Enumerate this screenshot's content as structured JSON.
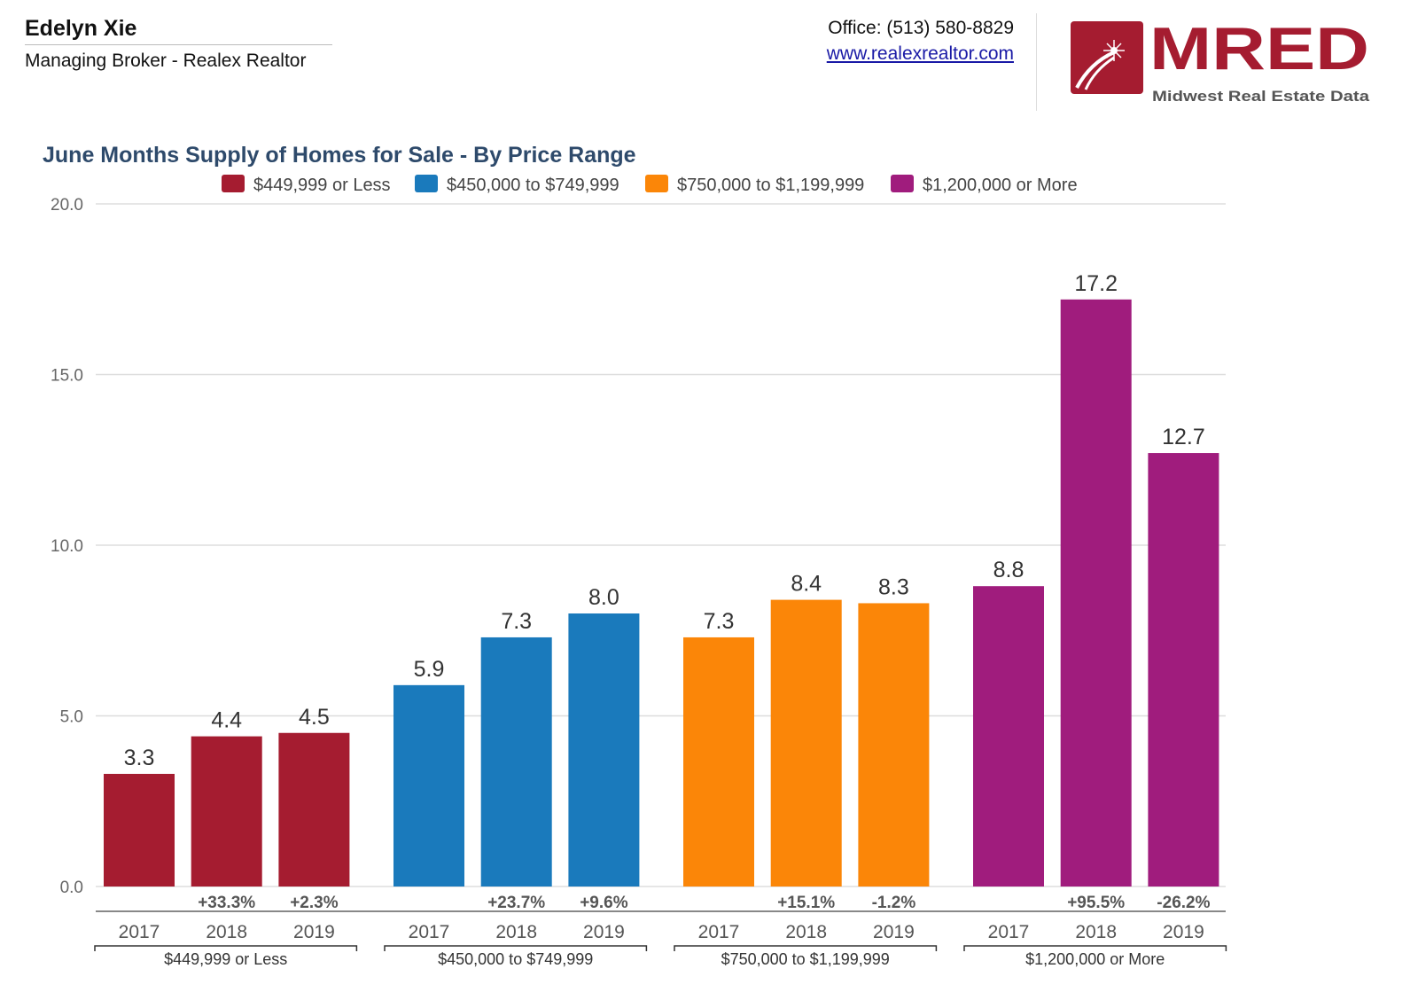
{
  "header": {
    "name": "Edelyn Xie",
    "role": "Managing Broker - Realex Realtor",
    "office": "Office: (513) 580-8829",
    "website": "www.realexrealtor.com",
    "logo": {
      "text": "MRED",
      "subtitle": "Midwest Real Estate Data",
      "color": "#a51c30"
    }
  },
  "chart_data": {
    "type": "bar",
    "title": "June Months Supply of Homes for Sale - By Price Range",
    "ylim": [
      0,
      20
    ],
    "yticks": [
      "0.0",
      "5.0",
      "10.0",
      "15.0",
      "20.0"
    ],
    "grid": true,
    "legend_placement": "top",
    "categories": [
      "2017",
      "2018",
      "2019"
    ],
    "series": [
      {
        "name": "$449,999 or Less",
        "color": "#a51c30",
        "values": [
          3.3,
          4.4,
          4.5
        ],
        "labels": [
          "3.3",
          "4.4",
          "4.5"
        ],
        "changes": [
          "",
          "+33.3%",
          "+2.3%"
        ]
      },
      {
        "name": "$450,000 to $749,999",
        "color": "#1a7abc",
        "values": [
          5.9,
          7.3,
          8.0
        ],
        "labels": [
          "5.9",
          "7.3",
          "8.0"
        ],
        "changes": [
          "",
          "+23.7%",
          "+9.6%"
        ]
      },
      {
        "name": "$750,000 to $1,199,999",
        "color": "#fb8608",
        "values": [
          7.3,
          8.4,
          8.3
        ],
        "labels": [
          "7.3",
          "8.4",
          "8.3"
        ],
        "changes": [
          "",
          "+15.1%",
          "-1.2%"
        ]
      },
      {
        "name": "$1,200,000 or More",
        "color": "#a01c7d",
        "values": [
          8.8,
          17.2,
          12.7
        ],
        "labels": [
          "8.8",
          "17.2",
          "12.7"
        ],
        "changes": [
          "",
          "+95.5%",
          "-26.2%"
        ]
      }
    ]
  }
}
